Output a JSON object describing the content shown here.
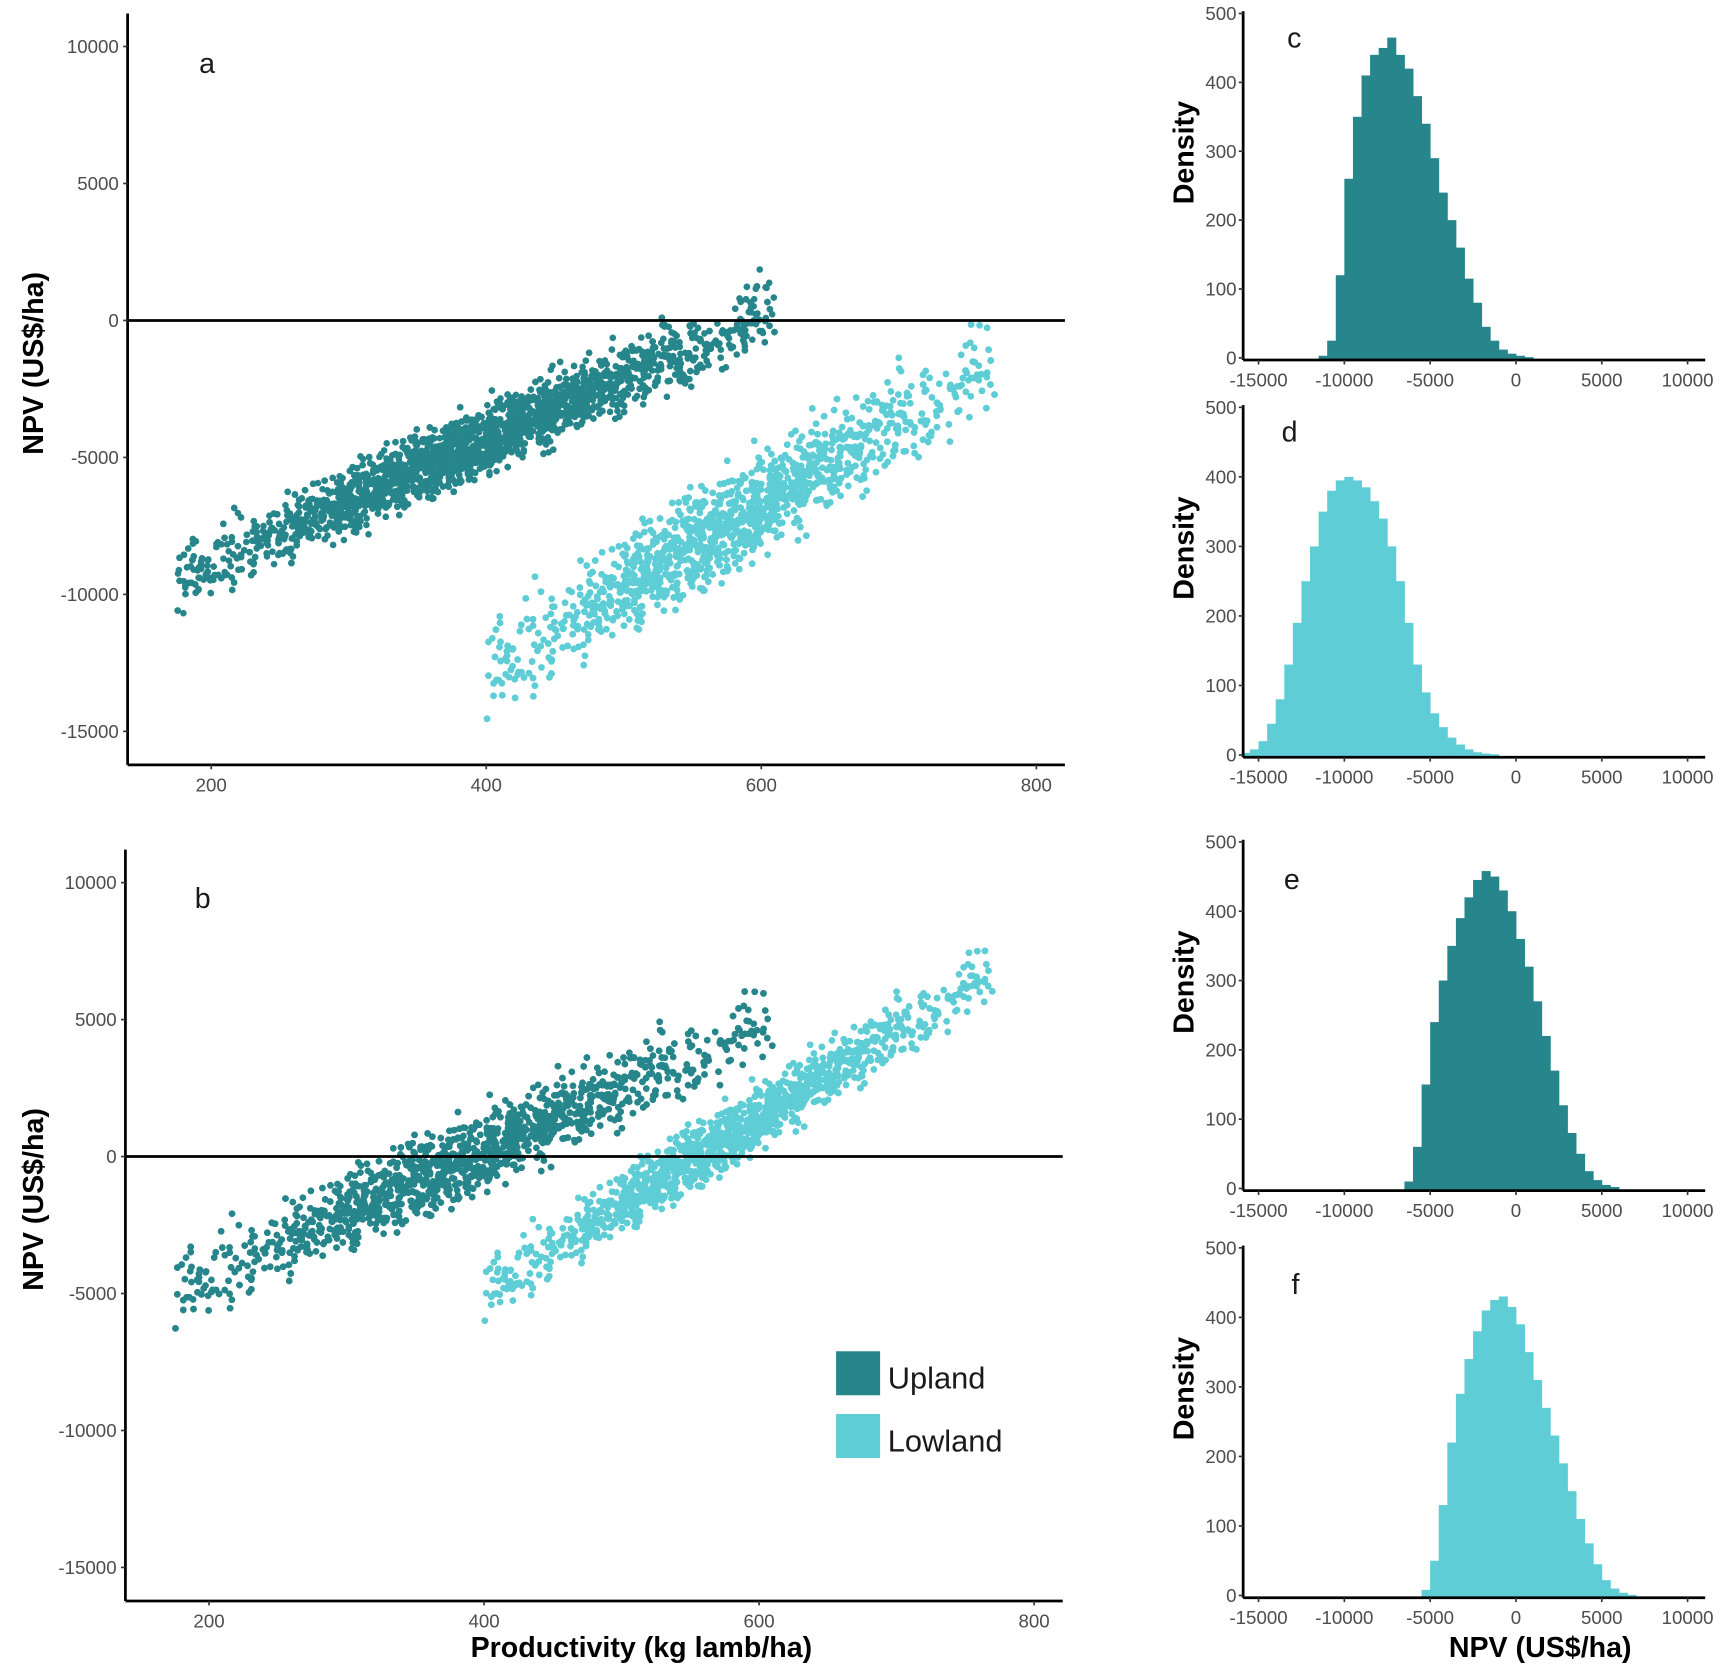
{
  "colors": {
    "upland": "#26868b",
    "lowland": "#5ecdd5"
  },
  "legend": {
    "items": [
      {
        "label": "Upland",
        "color": "#26868b"
      },
      {
        "label": "Lowland",
        "color": "#5ecdd5"
      }
    ]
  },
  "chart_data": [
    {
      "panel": "a",
      "type": "scatter",
      "xlabel": "",
      "ylabel": "NPV (US$/ha)",
      "xlim": [
        140,
        820
      ],
      "ylim": [
        -16200,
        11200
      ],
      "xticks": [
        "200",
        "400",
        "600",
        "800"
      ],
      "yticks": [
        "10000",
        "5000",
        "0",
        "-5000",
        "-10000",
        "-15000"
      ],
      "hline": 0,
      "series": [
        {
          "name": "Upland",
          "x_range": [
            175,
            610
          ],
          "npv_at_x_min": -9400,
          "npv_at_x_max": 400,
          "spread": 1300
        },
        {
          "name": "Lowland",
          "x_range": [
            400,
            770
          ],
          "npv_at_x_min": -12800,
          "npv_at_x_max": -1500,
          "spread": 1900
        }
      ]
    },
    {
      "panel": "b",
      "type": "scatter",
      "xlabel": "Productivity (kg lamb/ha)",
      "ylabel": "NPV (US$/ha)",
      "xlim": [
        140,
        820
      ],
      "ylim": [
        -16200,
        11200
      ],
      "xticks": [
        "200",
        "400",
        "600",
        "800"
      ],
      "yticks": [
        "10000",
        "5000",
        "0",
        "-5000",
        "-10000",
        "-15000"
      ],
      "hline": 0,
      "series": [
        {
          "name": "Upland",
          "x_range": [
            175,
            610
          ],
          "npv_at_x_min": -4900,
          "npv_at_x_max": 5000,
          "spread": 1500
        },
        {
          "name": "Lowland",
          "x_range": [
            400,
            770
          ],
          "npv_at_x_min": -4900,
          "npv_at_x_max": 6800,
          "spread": 1200
        }
      ]
    },
    {
      "panel": "c",
      "type": "bar",
      "series_name": "Upland",
      "xlabel": "",
      "ylabel": "Density",
      "xlim": [
        -16000,
        11000
      ],
      "ylim": [
        0,
        505
      ],
      "xticks": [
        "-15000",
        "-10000",
        "-5000",
        "0",
        "5000",
        "10000"
      ],
      "yticks": [
        "500",
        "400",
        "300",
        "200",
        "100",
        "0"
      ],
      "bin_start": -11500,
      "bin_width": 500,
      "values": [
        3,
        25,
        120,
        260,
        350,
        410,
        440,
        450,
        465,
        440,
        420,
        380,
        340,
        290,
        240,
        200,
        160,
        115,
        80,
        45,
        25,
        12,
        6,
        3,
        1
      ]
    },
    {
      "panel": "d",
      "type": "bar",
      "series_name": "Lowland",
      "xlabel": "",
      "ylabel": "Density",
      "xlim": [
        -16000,
        11000
      ],
      "ylim": [
        0,
        505
      ],
      "xticks": [
        "-15000",
        "-10000",
        "-5000",
        "0",
        "5000",
        "10000"
      ],
      "yticks": [
        "500",
        "400",
        "300",
        "200",
        "100",
        "0"
      ],
      "bin_start": -16000,
      "bin_width": 500,
      "values": [
        3,
        8,
        20,
        45,
        80,
        130,
        190,
        250,
        300,
        350,
        380,
        395,
        400,
        395,
        385,
        365,
        340,
        300,
        250,
        190,
        130,
        90,
        60,
        40,
        25,
        15,
        8,
        4,
        2,
        1
      ]
    },
    {
      "panel": "e",
      "type": "bar",
      "series_name": "Upland",
      "xlabel": "",
      "ylabel": "Density",
      "xlim": [
        -16000,
        11000
      ],
      "ylim": [
        0,
        505
      ],
      "xticks": [
        "-15000",
        "-10000",
        "-5000",
        "0",
        "5000",
        "10000"
      ],
      "yticks": [
        "500",
        "400",
        "300",
        "200",
        "100",
        "0"
      ],
      "bin_start": -6500,
      "bin_width": 500,
      "values": [
        10,
        60,
        150,
        240,
        300,
        350,
        390,
        420,
        445,
        458,
        450,
        430,
        400,
        360,
        320,
        270,
        220,
        170,
        120,
        80,
        50,
        25,
        12,
        5,
        2
      ]
    },
    {
      "panel": "f",
      "type": "bar",
      "series_name": "Lowland",
      "xlabel": "NPV (US$/ha)",
      "ylabel": "Density",
      "xlim": [
        -16000,
        11000
      ],
      "ylim": [
        0,
        505
      ],
      "xticks": [
        "-15000",
        "-10000",
        "-5000",
        "0",
        "5000",
        "10000"
      ],
      "yticks": [
        "500",
        "400",
        "300",
        "200",
        "100",
        "0"
      ],
      "bin_start": -5500,
      "bin_width": 500,
      "values": [
        8,
        50,
        130,
        220,
        290,
        340,
        380,
        410,
        425,
        430,
        415,
        390,
        350,
        310,
        270,
        230,
        190,
        150,
        110,
        75,
        45,
        22,
        10,
        4,
        1
      ]
    }
  ]
}
